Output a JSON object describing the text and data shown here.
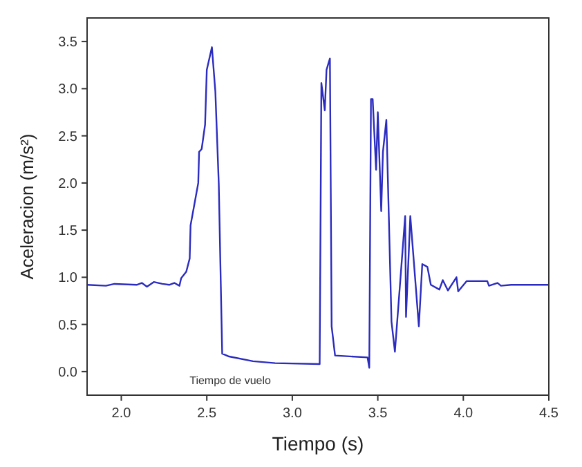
{
  "chart_data": {
    "type": "line",
    "xlabel": "Tiempo (s)",
    "ylabel": "Aceleracion (m/s²)",
    "xlim": [
      1.8,
      4.5
    ],
    "xticks": [
      {
        "value": 2,
        "label": "2.0"
      },
      {
        "value": 2.5,
        "label": "2.5"
      },
      {
        "value": 3,
        "label": "3.0"
      },
      {
        "value": 3.5,
        "label": "3.5"
      },
      {
        "value": 4,
        "label": "4.0"
      },
      {
        "value": 4.5,
        "label": "4.5"
      }
    ],
    "ylim": [
      -0.25,
      3.75
    ],
    "yticks": [
      {
        "value": 0,
        "label": "0.0"
      },
      {
        "value": 0.5,
        "label": "0.5"
      },
      {
        "value": 1,
        "label": "1.0"
      },
      {
        "value": 1.5,
        "label": "1.5"
      },
      {
        "value": 2,
        "label": "2.0"
      },
      {
        "value": 2.5,
        "label": "2.5"
      },
      {
        "value": 3,
        "label": "3.0"
      },
      {
        "value": 3.5,
        "label": "3.5"
      }
    ],
    "grid": false,
    "marker": "none",
    "line_style": "solid",
    "annotations": [
      "Tiempo de vuelo"
    ],
    "series": [
      {
        "color": "#2b2bc0",
        "x": [
          1.8,
          1.91,
          1.96,
          2.09,
          2.12,
          2.15,
          2.19,
          2.24,
          2.28,
          2.31,
          2.34,
          2.35,
          2.38,
          2.4,
          2.405,
          2.43,
          2.45,
          2.455,
          2.47,
          2.49,
          2.5,
          2.53,
          2.55,
          2.57,
          2.59,
          2.63,
          2.77,
          2.9,
          3.16,
          3.17,
          3.19,
          3.2,
          3.22,
          3.23,
          3.25,
          3.44,
          3.45,
          3.46,
          3.47,
          3.49,
          3.5,
          3.52,
          3.53,
          3.55,
          3.58,
          3.6,
          3.66,
          3.665,
          3.69,
          3.74,
          3.76,
          3.79,
          3.81,
          3.86,
          3.88,
          3.91,
          3.96,
          3.97,
          4.02,
          4.14,
          4.15,
          4.2,
          4.22,
          4.28,
          4.5
        ],
        "values": [
          0.92,
          0.91,
          0.93,
          0.92,
          0.94,
          0.9,
          0.95,
          0.93,
          0.92,
          0.94,
          0.91,
          0.99,
          1.06,
          1.2,
          1.55,
          1.8,
          2.0,
          2.33,
          2.36,
          2.62,
          3.2,
          3.44,
          2.97,
          1.99,
          0.19,
          0.16,
          0.11,
          0.09,
          0.08,
          3.06,
          2.77,
          3.2,
          3.32,
          0.48,
          0.17,
          0.15,
          0.04,
          2.89,
          2.89,
          2.14,
          2.75,
          1.7,
          2.33,
          2.67,
          0.53,
          0.21,
          1.65,
          0.58,
          1.65,
          0.48,
          1.14,
          1.11,
          0.92,
          0.87,
          0.97,
          0.86,
          1.0,
          0.85,
          0.96,
          0.96,
          0.91,
          0.94,
          0.91,
          0.92,
          0.92
        ]
      }
    ]
  }
}
